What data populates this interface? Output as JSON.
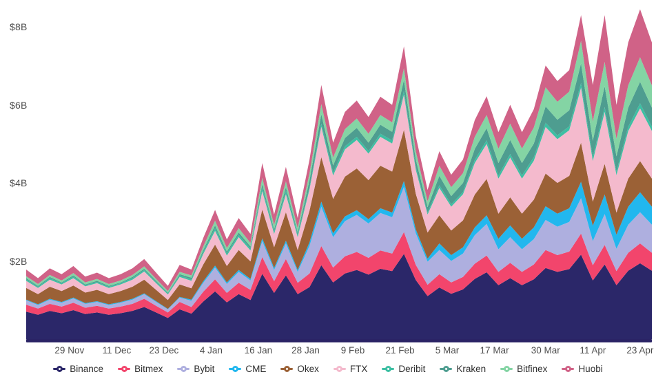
{
  "chart_data": {
    "type": "area",
    "stacked": true,
    "title": "",
    "xlabel": "",
    "ylabel": "",
    "unit": "USD billions",
    "grid": false,
    "legend_position": "bottom",
    "ylim": [
      0,
      8.6
    ],
    "y_ticks": [
      {
        "label": "$8B",
        "value": 8
      },
      {
        "label": "$6B",
        "value": 6
      },
      {
        "label": "$4B",
        "value": 4
      },
      {
        "label": "$2B",
        "value": 2
      }
    ],
    "x_ticks": [
      {
        "label": "29 Nov",
        "day": 11
      },
      {
        "label": "11 Dec",
        "day": 23
      },
      {
        "label": "23 Dec",
        "day": 35
      },
      {
        "label": "4 Jan",
        "day": 47
      },
      {
        "label": "16 Jan",
        "day": 59
      },
      {
        "label": "28 Jan",
        "day": 71
      },
      {
        "label": "9 Feb",
        "day": 83
      },
      {
        "label": "21 Feb",
        "day": 95
      },
      {
        "label": "5 Mar",
        "day": 107
      },
      {
        "label": "17 Mar",
        "day": 119
      },
      {
        "label": "30 Mar",
        "day": 132
      },
      {
        "label": "11 Apr",
        "day": 144
      },
      {
        "label": "23 Apr",
        "day": 156
      }
    ],
    "x_days": [
      0,
      3,
      6,
      9,
      12,
      15,
      18,
      21,
      24,
      27,
      30,
      33,
      36,
      39,
      42,
      45,
      48,
      51,
      54,
      57,
      60,
      63,
      66,
      69,
      72,
      75,
      78,
      81,
      84,
      87,
      90,
      93,
      96,
      99,
      102,
      105,
      108,
      111,
      114,
      117,
      120,
      123,
      126,
      129,
      132,
      135,
      138,
      141,
      144,
      147,
      150,
      153,
      156,
      159
    ],
    "series": [
      {
        "name": "Binance",
        "color": "#2B2769",
        "values": [
          0.7,
          0.62,
          0.72,
          0.66,
          0.74,
          0.64,
          0.68,
          0.62,
          0.66,
          0.72,
          0.82,
          0.68,
          0.54,
          0.76,
          0.65,
          0.96,
          1.22,
          0.94,
          1.15,
          1.0,
          1.67,
          1.18,
          1.63,
          1.15,
          1.33,
          1.89,
          1.45,
          1.68,
          1.77,
          1.65,
          1.8,
          1.74,
          2.18,
          1.51,
          1.1,
          1.32,
          1.16,
          1.27,
          1.54,
          1.71,
          1.38,
          1.56,
          1.38,
          1.53,
          1.82,
          1.72,
          1.79,
          2.16,
          1.5,
          1.91,
          1.38,
          1.75,
          1.94,
          1.75
        ]
      },
      {
        "name": "Bitmex",
        "color": "#F2456C",
        "values": [
          0.18,
          0.16,
          0.18,
          0.17,
          0.19,
          0.16,
          0.17,
          0.16,
          0.17,
          0.18,
          0.21,
          0.17,
          0.14,
          0.19,
          0.17,
          0.25,
          0.31,
          0.24,
          0.29,
          0.26,
          0.43,
          0.3,
          0.42,
          0.29,
          0.35,
          0.49,
          0.38,
          0.44,
          0.46,
          0.43,
          0.47,
          0.45,
          0.56,
          0.39,
          0.29,
          0.34,
          0.29,
          0.32,
          0.39,
          0.43,
          0.34,
          0.39,
          0.34,
          0.38,
          0.46,
          0.43,
          0.45,
          0.54,
          0.39,
          0.5,
          0.36,
          0.46,
          0.51,
          0.46
        ]
      },
      {
        "name": "Bybit",
        "color": "#AEAFDF",
        "values": [
          0.11,
          0.09,
          0.11,
          0.1,
          0.11,
          0.1,
          0.1,
          0.09,
          0.1,
          0.11,
          0.12,
          0.1,
          0.08,
          0.11,
          0.16,
          0.23,
          0.3,
          0.23,
          0.28,
          0.24,
          0.41,
          0.29,
          0.4,
          0.28,
          0.71,
          1.01,
          0.78,
          0.9,
          0.95,
          0.88,
          0.96,
          0.93,
          1.16,
          0.81,
          0.59,
          0.62,
          0.55,
          0.6,
          0.73,
          0.81,
          0.58,
          0.66,
          0.58,
          0.65,
          0.77,
          0.73,
          0.76,
          0.91,
          0.62,
          0.79,
          0.57,
          0.72,
          0.8,
          0.72
        ]
      },
      {
        "name": "CME",
        "color": "#22B7EE",
        "values": [
          0.02,
          0.02,
          0.02,
          0.02,
          0.02,
          0.02,
          0.02,
          0.02,
          0.02,
          0.02,
          0.02,
          0.02,
          0.01,
          0.02,
          0.03,
          0.04,
          0.05,
          0.04,
          0.05,
          0.04,
          0.07,
          0.05,
          0.07,
          0.05,
          0.09,
          0.13,
          0.1,
          0.12,
          0.12,
          0.11,
          0.12,
          0.12,
          0.15,
          0.1,
          0.08,
          0.17,
          0.15,
          0.16,
          0.2,
          0.22,
          0.27,
          0.3,
          0.27,
          0.3,
          0.35,
          0.33,
          0.35,
          0.42,
          0.39,
          0.5,
          0.36,
          0.46,
          0.51,
          0.46
        ]
      },
      {
        "name": "Okex",
        "color": "#9B6136",
        "values": [
          0.3,
          0.26,
          0.31,
          0.28,
          0.31,
          0.27,
          0.29,
          0.26,
          0.28,
          0.31,
          0.35,
          0.29,
          0.23,
          0.32,
          0.29,
          0.43,
          0.54,
          0.42,
          0.51,
          0.45,
          0.74,
          0.53,
          0.73,
          0.51,
          0.81,
          1.14,
          0.88,
          1.02,
          1.07,
          1.0,
          1.09,
          1.05,
          1.31,
          0.91,
          0.67,
          0.72,
          0.63,
          0.69,
          0.84,
          0.93,
          0.64,
          0.72,
          0.64,
          0.71,
          0.84,
          0.79,
          0.83,
          1.0,
          0.62,
          0.79,
          0.57,
          0.72,
          0.8,
          0.72
        ]
      },
      {
        "name": "FTX",
        "color": "#F4BACD",
        "values": [
          0.18,
          0.16,
          0.18,
          0.17,
          0.19,
          0.16,
          0.17,
          0.16,
          0.17,
          0.18,
          0.21,
          0.17,
          0.14,
          0.19,
          0.19,
          0.27,
          0.35,
          0.27,
          0.33,
          0.28,
          0.47,
          0.34,
          0.46,
          0.33,
          0.55,
          0.78,
          0.6,
          0.7,
          0.73,
          0.68,
          0.74,
          0.72,
          0.9,
          0.62,
          0.46,
          0.7,
          0.61,
          0.67,
          0.81,
          0.9,
          0.9,
          1.02,
          0.9,
          1.0,
          1.19,
          1.12,
          1.17,
          1.41,
          1.04,
          1.33,
          0.96,
          1.22,
          1.35,
          1.22
        ]
      },
      {
        "name": "Deribit",
        "color": "#3DBFA3",
        "values": [
          0.04,
          0.03,
          0.04,
          0.03,
          0.04,
          0.03,
          0.03,
          0.03,
          0.03,
          0.04,
          0.04,
          0.03,
          0.03,
          0.04,
          0.04,
          0.05,
          0.07,
          0.05,
          0.06,
          0.05,
          0.09,
          0.06,
          0.09,
          0.06,
          0.06,
          0.08,
          0.07,
          0.08,
          0.08,
          0.07,
          0.08,
          0.08,
          0.1,
          0.07,
          0.05,
          0.07,
          0.06,
          0.06,
          0.08,
          0.09,
          0.08,
          0.09,
          0.08,
          0.09,
          0.11,
          0.1,
          0.1,
          0.12,
          0.1,
          0.12,
          0.09,
          0.11,
          0.13,
          0.11
        ]
      },
      {
        "name": "Kraken",
        "color": "#4E9D90",
        "values": [
          0.03,
          0.02,
          0.03,
          0.02,
          0.03,
          0.02,
          0.03,
          0.02,
          0.02,
          0.03,
          0.03,
          0.03,
          0.02,
          0.03,
          0.04,
          0.05,
          0.07,
          0.05,
          0.06,
          0.05,
          0.09,
          0.06,
          0.09,
          0.06,
          0.17,
          0.24,
          0.19,
          0.21,
          0.23,
          0.21,
          0.23,
          0.22,
          0.28,
          0.19,
          0.14,
          0.24,
          0.21,
          0.23,
          0.28,
          0.31,
          0.32,
          0.36,
          0.32,
          0.35,
          0.42,
          0.4,
          0.41,
          0.5,
          0.42,
          0.54,
          0.39,
          0.49,
          0.55,
          0.49
        ]
      },
      {
        "name": "Bitfinex",
        "color": "#84D4A4",
        "values": [
          0.05,
          0.05,
          0.05,
          0.05,
          0.06,
          0.05,
          0.05,
          0.05,
          0.05,
          0.05,
          0.06,
          0.05,
          0.04,
          0.06,
          0.06,
          0.09,
          0.12,
          0.09,
          0.11,
          0.09,
          0.16,
          0.11,
          0.15,
          0.11,
          0.18,
          0.26,
          0.2,
          0.23,
          0.24,
          0.23,
          0.25,
          0.24,
          0.3,
          0.21,
          0.15,
          0.26,
          0.23,
          0.25,
          0.31,
          0.34,
          0.37,
          0.42,
          0.37,
          0.41,
          0.49,
          0.46,
          0.48,
          0.58,
          0.49,
          0.62,
          0.45,
          0.57,
          0.63,
          0.57
        ]
      },
      {
        "name": "Huobi",
        "color": "#D06287",
        "values": [
          0.17,
          0.15,
          0.17,
          0.16,
          0.18,
          0.15,
          0.16,
          0.15,
          0.16,
          0.17,
          0.19,
          0.16,
          0.13,
          0.18,
          0.15,
          0.22,
          0.28,
          0.22,
          0.26,
          0.23,
          0.38,
          0.27,
          0.37,
          0.26,
          0.35,
          0.49,
          0.38,
          0.44,
          0.46,
          0.43,
          0.47,
          0.45,
          0.56,
          0.39,
          0.29,
          0.37,
          0.32,
          0.35,
          0.43,
          0.48,
          0.42,
          0.48,
          0.42,
          0.47,
          0.56,
          0.53,
          0.55,
          0.66,
          0.94,
          1.2,
          0.87,
          1.1,
          1.23,
          1.1
        ]
      }
    ]
  },
  "axis": {
    "baseline_color": "#2A2365"
  },
  "legend": {
    "items": [
      {
        "label": "Binance",
        "color": "#2B2769"
      },
      {
        "label": "Bitmex",
        "color": "#F2456C"
      },
      {
        "label": "Bybit",
        "color": "#AEAFDF"
      },
      {
        "label": "CME",
        "color": "#22B7EE"
      },
      {
        "label": "Okex",
        "color": "#9B6136"
      },
      {
        "label": "FTX",
        "color": "#F4BACD"
      },
      {
        "label": "Deribit",
        "color": "#3DBFA3"
      },
      {
        "label": "Kraken",
        "color": "#4E9D90"
      },
      {
        "label": "Bitfinex",
        "color": "#84D4A4"
      },
      {
        "label": "Huobi",
        "color": "#D06287"
      }
    ]
  }
}
